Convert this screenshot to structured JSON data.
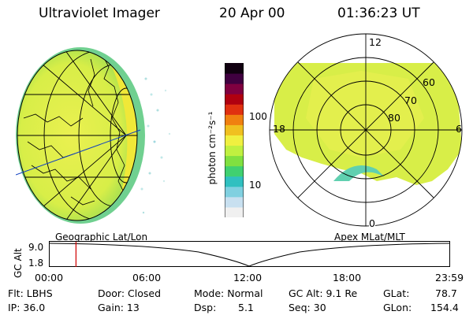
{
  "header": {
    "title": "Ultraviolet Imager",
    "date": "20 Apr 00",
    "time": "01:36:23 UT"
  },
  "colorbar": {
    "unit_label": "photon cm⁻²s⁻¹",
    "tick_100": "100",
    "tick_10": "10",
    "colors": [
      "#f0f0f0",
      "#c8e0f0",
      "#80d0e0",
      "#30c0c0",
      "#40d070",
      "#80e040",
      "#c0f040",
      "#f0f040",
      "#f0c020",
      "#f08010",
      "#e03010",
      "#b00010",
      "#800040",
      "#400040",
      "#100010"
    ]
  },
  "polar_plot": {
    "label_12": "12",
    "label_18": "18",
    "label_6": "6",
    "label_0": "0",
    "label_60": "60",
    "label_70": "70",
    "label_80": "80"
  },
  "timeline": {
    "left_label": "Geographic Lat/Lon",
    "right_label": "Apex MLat/MLT",
    "y_axis_label": "GC Alt",
    "y_tick_high": "9.0",
    "y_tick_low": "1.8",
    "x_ticks": [
      "00:00",
      "06:00",
      "12:00",
      "18:00",
      "23:59"
    ],
    "marker_time": "01:36",
    "marker_color": "#d00000"
  },
  "info": {
    "flt": "Flt: LBHS",
    "ip": "IP: 36.0",
    "door": "Door: Closed",
    "gain": "Gain: 13",
    "mode": "Mode: Normal",
    "dsp_label": "Dsp:",
    "dsp_value": "5.1",
    "gcalt": "GC Alt: 9.1 Re",
    "seq": "Seq: 30",
    "glat_label": "GLat:",
    "glat_value": "78.7",
    "glon_label": "GLon:",
    "glon_value": "154.4"
  }
}
